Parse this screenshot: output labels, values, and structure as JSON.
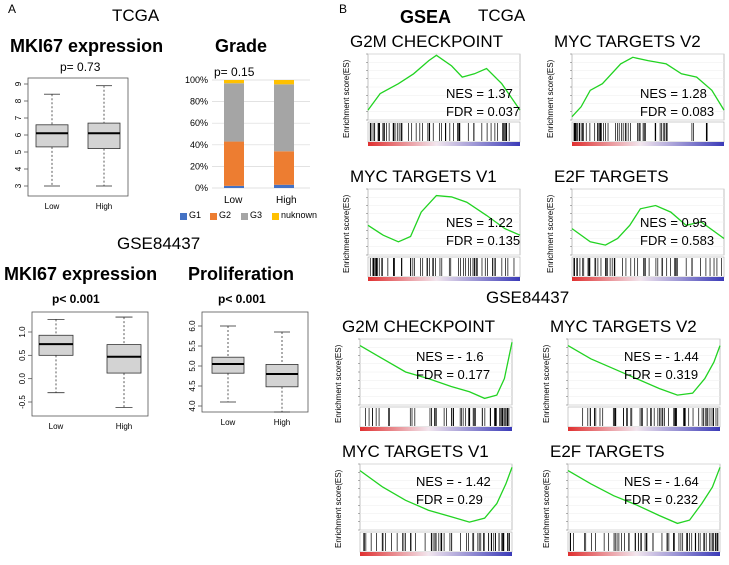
{
  "panel_a": {
    "letter": "A",
    "tcga_label": "TCGA",
    "gse_label": "GSE84437",
    "mki67_title": "MKI67 expression",
    "grade_title": "Grade",
    "mki67_gse_title": "MKI67 expression",
    "prolif_title": "Proliferation",
    "p_tcga_mki67": "p= 0.73",
    "p_tcga_grade": "p= 0.15",
    "p_gse_mki67": "p< 0.001",
    "p_gse_prolif": "p< 0.001"
  },
  "panel_b": {
    "letter": "B",
    "gsea_label": "GSEA",
    "tcga_label": "TCGA",
    "gse_label": "GSE84437",
    "ylabel": "Enrichment score(ES)"
  },
  "gsea_panels": [
    {
      "title": "G2M CHECKPOINT",
      "nes": "NES = 1.37",
      "fdr": "FDR = 0.037"
    },
    {
      "title": "MYC TARGETS V2",
      "nes": "NES = 1.28",
      "fdr": "FDR = 0.083"
    },
    {
      "title": "MYC TARGETS V1",
      "nes": "NES = 1.22",
      "fdr": "FDR = 0.135"
    },
    {
      "title": "E2F TARGETS",
      "nes": "NES = 0.95",
      "fdr": "FDR = 0.583"
    },
    {
      "title": "G2M CHECKPOINT",
      "nes": "NES = - 1.6",
      "fdr": "FDR = 0.177"
    },
    {
      "title": "MYC TARGETS V2",
      "nes": "NES = - 1.44",
      "fdr": "FDR = 0.319"
    },
    {
      "title": "MYC TARGETS V1",
      "nes": "NES = - 1.42",
      "fdr": "FDR = 0.29"
    },
    {
      "title": "E2F TARGETS",
      "nes": "NES = - 1.64",
      "fdr": "FDR = 0.232"
    }
  ],
  "colors": {
    "g1": "#4472c4",
    "g2": "#ed7d31",
    "g3": "#a5a5a5",
    "unknown": "#ffc000",
    "es_line": "#22d322",
    "box_fill": "#d3d3d3"
  },
  "chart_data": [
    {
      "id": "tcga_mki67",
      "type": "box",
      "title": "MKI67 expression",
      "categories": [
        "Low",
        "High"
      ],
      "ylim": [
        3,
        9
      ],
      "yticks": [
        "3",
        "4",
        "5",
        "6",
        "7",
        "8",
        "9"
      ],
      "boxes": [
        {
          "name": "Low",
          "whisker_low": 3.0,
          "q1": 5.3,
          "median": 6.1,
          "q3": 6.6,
          "whisker_high": 8.4
        },
        {
          "name": "High",
          "whisker_low": 3.0,
          "q1": 5.2,
          "median": 6.1,
          "q3": 6.7,
          "whisker_high": 8.9
        }
      ]
    },
    {
      "id": "tcga_grade",
      "type": "bar",
      "stacked": true,
      "title": "Grade",
      "categories": [
        "Low",
        "High"
      ],
      "ylim": [
        0,
        100
      ],
      "yticks": [
        "0%",
        "20%",
        "40%",
        "60%",
        "80%",
        "100%"
      ],
      "series": [
        {
          "name": "G1",
          "values": [
            2,
            3
          ]
        },
        {
          "name": "G2",
          "values": [
            41,
            31
          ]
        },
        {
          "name": "G3",
          "values": [
            54,
            62
          ]
        },
        {
          "name": "nuknown",
          "values": [
            3,
            4
          ]
        }
      ]
    },
    {
      "id": "gse_mki67",
      "type": "box",
      "title": "MKI67 expression",
      "categories": [
        "Low",
        "High"
      ],
      "ylim": [
        -0.5,
        1.0
      ],
      "yticks": [
        "-0.5",
        "0.0",
        "0.5",
        "1.0"
      ],
      "boxes": [
        {
          "name": "Low",
          "whisker_low": -0.3,
          "q1": 0.5,
          "median": 0.74,
          "q3": 0.93,
          "whisker_high": 1.27
        },
        {
          "name": "High",
          "whisker_low": -0.62,
          "q1": 0.12,
          "median": 0.47,
          "q3": 0.73,
          "whisker_high": 1.32
        }
      ]
    },
    {
      "id": "gse_prolif",
      "type": "box",
      "title": "Proliferation",
      "categories": [
        "Low",
        "High"
      ],
      "ylim": [
        4.0,
        6.0
      ],
      "yticks": [
        "4.0",
        "4.5",
        "5.0",
        "5.5",
        "6.0"
      ],
      "boxes": [
        {
          "name": "Low",
          "whisker_low": 4.1,
          "q1": 4.82,
          "median": 5.05,
          "q3": 5.22,
          "whisker_high": 6.0
        },
        {
          "name": "High",
          "whisker_low": 3.85,
          "q1": 4.48,
          "median": 4.8,
          "q3": 5.04,
          "whisker_high": 5.85
        }
      ]
    }
  ]
}
